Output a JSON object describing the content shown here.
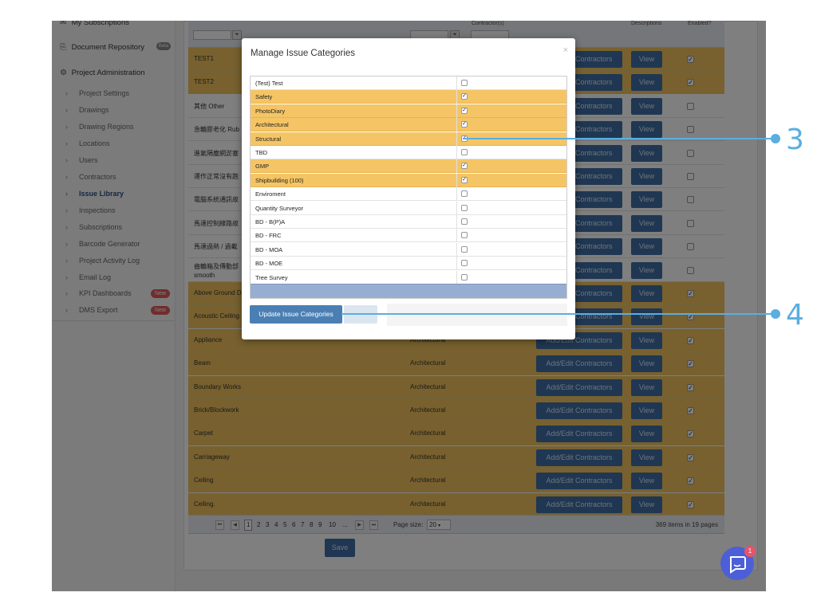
{
  "sidebar": {
    "top_items": [
      {
        "label": "My Subscriptions",
        "icon": "envelope-icon"
      },
      {
        "label": "Document Repository",
        "icon": "folder-icon",
        "badge": "Beta"
      },
      {
        "label": "Project Administration",
        "icon": "gears-icon"
      }
    ],
    "sub_items": [
      {
        "label": "Project Settings"
      },
      {
        "label": "Drawings"
      },
      {
        "label": "Drawing Regions"
      },
      {
        "label": "Locations"
      },
      {
        "label": "Users"
      },
      {
        "label": "Contractors"
      },
      {
        "label": "Issue Library",
        "active": true
      },
      {
        "label": "Inspections"
      },
      {
        "label": "Subscriptions"
      },
      {
        "label": "Barcode Generator"
      },
      {
        "label": "Project Activity Log"
      },
      {
        "label": "Email Log"
      },
      {
        "label": "KPI Dashboards",
        "badge": "New"
      },
      {
        "label": "DMS Export",
        "badge": "New"
      }
    ]
  },
  "grid": {
    "headers": [
      "Contractor(s)",
      "Descriptions",
      "Enabled?"
    ],
    "filter_icon": "funnel-icon",
    "contractors_button": "Add/Edit Contractors",
    "view_button": "View",
    "rows": [
      {
        "name": "TEST1",
        "category": "",
        "enabled": true
      },
      {
        "name": "TEST2",
        "category": "",
        "enabled": true
      },
      {
        "name": "其他 Other",
        "category": "",
        "enabled": false
      },
      {
        "name": "急輪膠老化 Rub",
        "category": "",
        "enabled": false
      },
      {
        "name": "進氣隔塵網淤塞",
        "category": "",
        "enabled": false
      },
      {
        "name": "運作正常沒有跑",
        "category": "",
        "enabled": false
      },
      {
        "name": "電腦系統通訊故",
        "category": "",
        "enabled": false
      },
      {
        "name": "馬達控制線路故",
        "category": "",
        "enabled": false
      },
      {
        "name": "馬達過熱 / 過載",
        "category": "",
        "enabled": false
      },
      {
        "name": "齒輪箱及傳動部",
        "name_line2": "smooth",
        "category": "",
        "enabled": false
      },
      {
        "name": "Above Ground D",
        "category": "",
        "enabled": true
      },
      {
        "name": "Acoustic Ceiling",
        "category": "",
        "enabled": true
      },
      {
        "name": "Appliance",
        "category": "Architectural",
        "enabled": true
      },
      {
        "name": "Beam",
        "category": "Architectural",
        "enabled": true
      },
      {
        "name": "Boundary Works",
        "category": "Architectural",
        "enabled": true
      },
      {
        "name": "Brick/Blockwork",
        "category": "Architectural",
        "enabled": true
      },
      {
        "name": "Carpet",
        "category": "Architectural",
        "enabled": true
      },
      {
        "name": "Carriageway",
        "category": "Architectural",
        "enabled": true
      },
      {
        "name": "Ceiling",
        "category": "Architectural",
        "enabled": true
      },
      {
        "name": "Ceiling.",
        "category": "Architectural",
        "enabled": true
      }
    ],
    "pager": {
      "pages": [
        "1",
        "2",
        "3",
        "4",
        "5",
        "6",
        "7",
        "8",
        "9",
        "10",
        "..."
      ],
      "current": "1",
      "page_size_label": "Page size:",
      "page_size": "20",
      "items_text": "369 items in 19 pages"
    },
    "save_label": "Save"
  },
  "modal": {
    "title": "Manage Issue Categories",
    "close": "×",
    "items": [
      {
        "label": "(Test) Test",
        "checked": false
      },
      {
        "label": "Safety",
        "checked": true
      },
      {
        "label": "PhotoDiary",
        "checked": true
      },
      {
        "label": "Architectural",
        "checked": true
      },
      {
        "label": "Structural",
        "checked": true
      },
      {
        "label": "TBD",
        "checked": false
      },
      {
        "label": "GMP",
        "checked": true
      },
      {
        "label": "Shipbuilding (100)",
        "checked": true
      },
      {
        "label": "Enviroment",
        "checked": false
      },
      {
        "label": "Quantity Surveyor",
        "checked": false
      },
      {
        "label": "BD - B(P)A",
        "checked": false
      },
      {
        "label": "BD - FRC",
        "checked": false
      },
      {
        "label": "BD - MOA",
        "checked": false
      },
      {
        "label": "BD - MOE",
        "checked": false
      },
      {
        "label": "Tree Survey",
        "checked": false
      }
    ],
    "update_label": "Update Issue Categories"
  },
  "chat": {
    "badge": "1"
  },
  "callouts": [
    "3",
    "4"
  ],
  "colors": {
    "accent_blue": "#3e6fa5",
    "row_gold": "#f0c25e",
    "callout": "#5aaee0"
  }
}
